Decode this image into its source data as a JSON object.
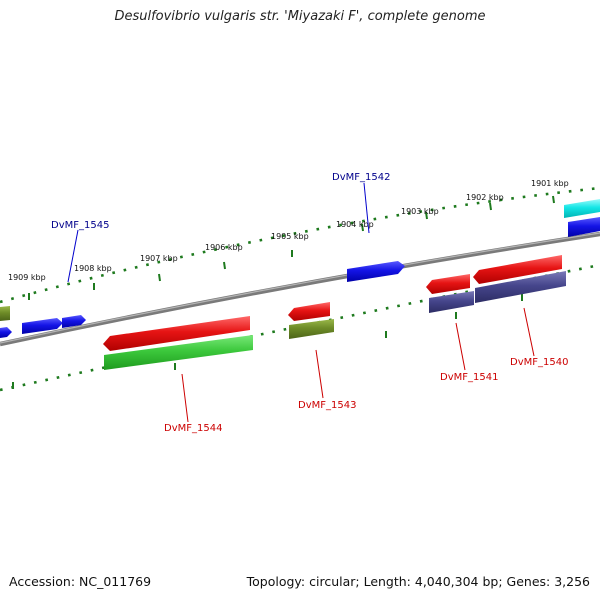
{
  "title": "Desulfovibrio vulgaris str. 'Miyazaki F', complete genome",
  "footer": {
    "accession": "Accession: NC_011769",
    "summary": "Topology: circular; Length: 4,040,304 bp; Genes: 3,256"
  },
  "scale_labels": [
    "1901 kbp",
    "1902 kbp",
    "1903 kbp",
    "1904 kbp",
    "1905 kbp",
    "1906 kbp",
    "1907 kbp",
    "1908 kbp",
    "1909 kbp"
  ],
  "gene_labels": {
    "DvMF_1542": "DvMF_1542",
    "DvMF_1545": "DvMF_1545",
    "DvMF_1544": "DvMF_1544",
    "DvMF_1543": "DvMF_1543",
    "DvMF_1541": "DvMF_1541",
    "DvMF_1540": "DvMF_1540"
  },
  "colors": {
    "forward_gene": "#1414e6",
    "reverse_gene": "#e61414",
    "green_feature": "#3cc83c",
    "olive_feature": "#6e8c28",
    "purple_feature": "#46468c",
    "cyan_feature": "#14e6e6",
    "backbone": "#808080",
    "scale_ticks": "#1e7a1e",
    "label_forward": "#00008b",
    "label_reverse": "#cc0000"
  }
}
